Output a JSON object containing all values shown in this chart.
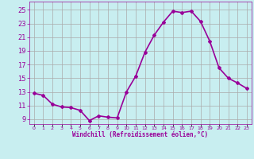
{
  "x": [
    0,
    1,
    2,
    3,
    4,
    5,
    6,
    7,
    8,
    9,
    10,
    11,
    12,
    13,
    14,
    15,
    16,
    17,
    18,
    19,
    20,
    21,
    22,
    23
  ],
  "y": [
    12.8,
    12.5,
    11.2,
    10.8,
    10.7,
    10.3,
    8.8,
    9.5,
    9.3,
    9.2,
    13.0,
    15.3,
    18.8,
    21.3,
    23.2,
    24.8,
    24.6,
    24.8,
    23.3,
    20.4,
    16.5,
    15.0,
    14.3,
    13.5
  ],
  "line_color": "#990099",
  "marker": "D",
  "marker_size": 2,
  "bg_color": "#c8eef0",
  "grid_color": "#aaaaaa",
  "xlabel": "Windchill (Refroidissement éolien,°C)",
  "xlabel_color": "#990099",
  "tick_color": "#990099",
  "ylabel_ticks": [
    9,
    11,
    13,
    15,
    17,
    19,
    21,
    23,
    25
  ],
  "xlim": [
    -0.5,
    23.5
  ],
  "ylim": [
    8.3,
    26.2
  ],
  "xtick_labels": [
    "0",
    "1",
    "2",
    "3",
    "4",
    "5",
    "6",
    "7",
    "8",
    "9",
    "10",
    "11",
    "12",
    "13",
    "14",
    "15",
    "16",
    "17",
    "18",
    "19",
    "20",
    "21",
    "22",
    "23"
  ],
  "line_width": 1.2,
  "ytick_fontsize": 6,
  "xtick_fontsize": 4.5,
  "xlabel_fontsize": 5.5
}
